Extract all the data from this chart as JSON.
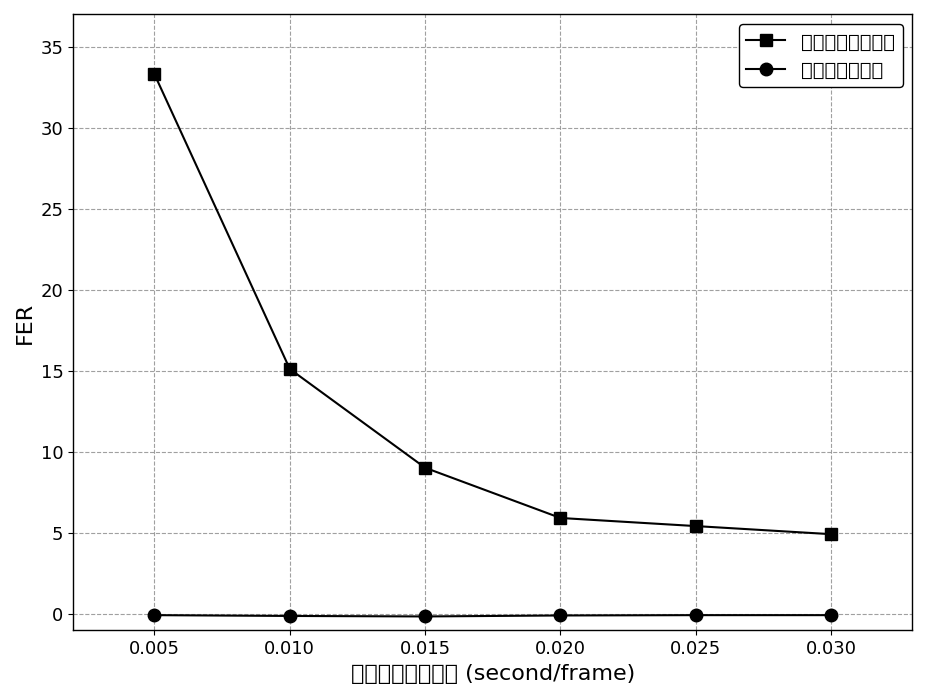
{
  "x": [
    0.005,
    0.01,
    0.015,
    0.02,
    0.025,
    0.03
  ],
  "y_nonrt": [
    33.3,
    15.1,
    9.0,
    5.9,
    5.4,
    4.9
  ],
  "y_rt": [
    -0.1,
    -0.15,
    -0.18,
    -0.12,
    -0.1,
    -0.1
  ],
  "xlabel": "非实时数据业务量 (second/frame)",
  "ylabel": "FER",
  "legend_nonrt": "非实时分组误帧率",
  "legend_rt": "实时分组误帧率",
  "xlim": [
    0.002,
    0.033
  ],
  "ylim": [
    -1,
    37
  ],
  "yticks": [
    0,
    5,
    10,
    15,
    20,
    25,
    30,
    35
  ],
  "xticks": [
    0.005,
    0.01,
    0.015,
    0.02,
    0.025,
    0.03
  ],
  "xtick_labels": [
    "0.005",
    "0.010",
    "0.015",
    "0.020",
    "0.025",
    "0.030"
  ],
  "line_color": "#000000",
  "marker_nonrt": "s",
  "marker_rt": "o",
  "marker_size": 9,
  "linewidth": 1.5,
  "grid_color": "#888888",
  "grid_linestyle": "--",
  "grid_alpha": 0.8,
  "background_color": "#ffffff",
  "font_size_label": 16,
  "font_size_tick": 13,
  "font_size_legend": 14
}
